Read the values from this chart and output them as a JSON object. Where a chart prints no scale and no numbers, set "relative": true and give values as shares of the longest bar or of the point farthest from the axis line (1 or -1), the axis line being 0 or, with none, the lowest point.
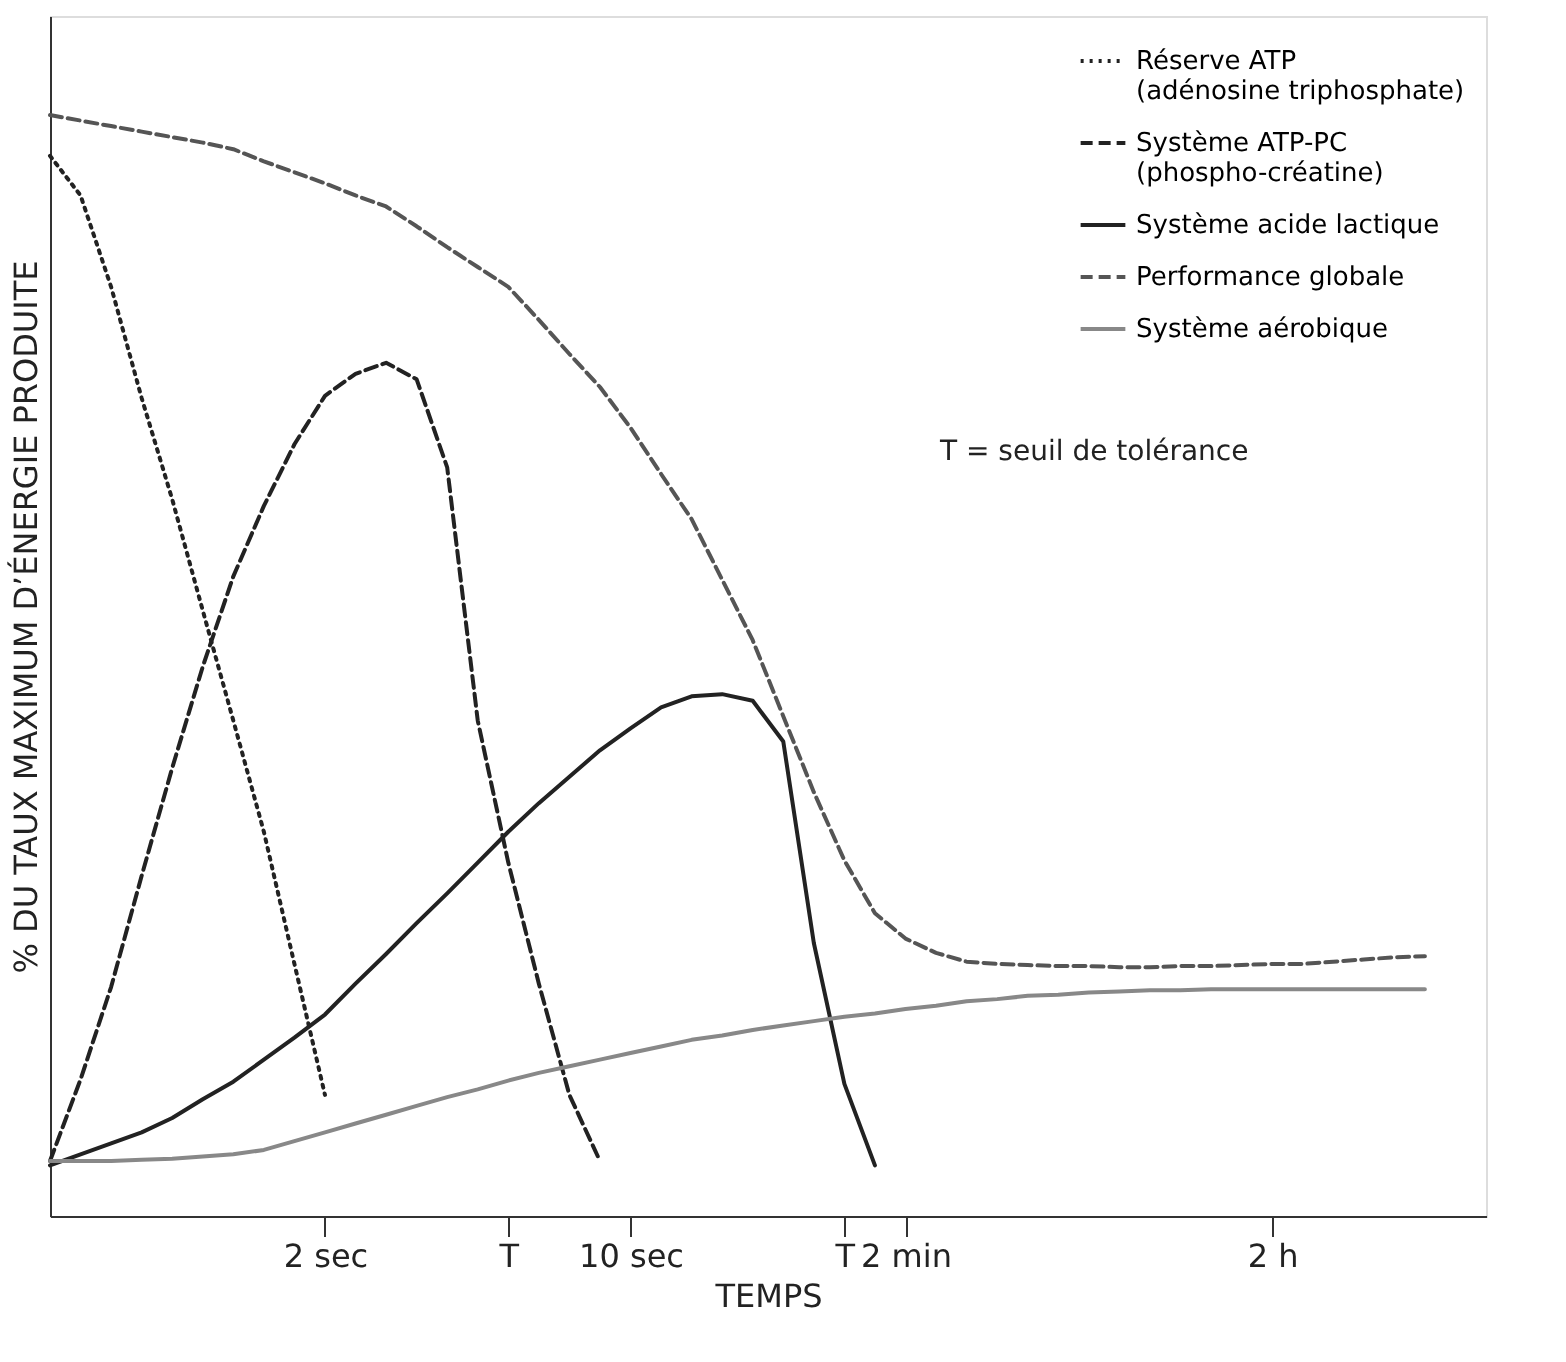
{
  "chart_data": {
    "type": "line",
    "relative": true,
    "xlabel": "TEMPS",
    "ylabel": "% DU TAUX MAXIMUM D’ÉNERGIE PRODUITE",
    "categories": [
      null,
      null,
      null,
      null,
      null,
      null,
      null,
      null,
      null,
      "2 sec",
      null,
      null,
      null,
      null,
      null,
      "T",
      null,
      null,
      null,
      "10 sec",
      null,
      null,
      null,
      null,
      null,
      null,
      "T",
      null,
      "2 min",
      null,
      null,
      null,
      null,
      null,
      null,
      null,
      null,
      null,
      null,
      null,
      "2 h",
      null,
      null,
      null,
      null,
      null,
      null,
      null
    ],
    "legend": "top right",
    "grid": false,
    "annotations": [
      "T   = seuil de tolérance"
    ],
    "series": [
      {
        "name": "Réserve ATP\n(adénosine triphosphate)",
        "color": "#222222",
        "line_style": "dotted",
        "values": [
          0.963,
          0.927,
          0.844,
          0.743,
          0.651,
          0.55,
          0.45,
          0.349,
          0.229,
          0.11,
          null,
          null,
          null,
          null,
          null,
          null,
          null,
          null,
          null,
          null,
          null,
          null,
          null,
          null,
          null,
          null,
          null,
          null,
          null,
          null,
          null,
          null,
          null,
          null,
          null,
          null,
          null,
          null,
          null,
          null,
          null,
          null,
          null,
          null,
          null,
          null,
          null,
          null
        ]
      },
      {
        "name": "Système ATP-PC\n(phospho-créatine)",
        "color": "#222222",
        "line_style": "dashed",
        "values": [
          0.05,
          0.124,
          0.208,
          0.309,
          0.407,
          0.499,
          0.581,
          0.645,
          0.701,
          0.745,
          0.765,
          0.775,
          0.76,
          0.68,
          0.45,
          0.321,
          0.211,
          0.11,
          0.05,
          null,
          null,
          null,
          null,
          null,
          null,
          null,
          null,
          null,
          null,
          null,
          null,
          null,
          null,
          null,
          null,
          null,
          null,
          null,
          null,
          null,
          null,
          null,
          null,
          null,
          null,
          null,
          null,
          null
        ]
      },
      {
        "name": "Système acide lactique",
        "color": "#222222",
        "line_style": "solid",
        "values": [
          0.046,
          0.056,
          0.066,
          0.076,
          0.089,
          0.106,
          0.122,
          0.142,
          0.162,
          0.183,
          0.211,
          0.238,
          0.266,
          0.293,
          0.321,
          0.349,
          0.375,
          0.399,
          0.423,
          0.443,
          0.462,
          0.472,
          0.474,
          0.468,
          0.431,
          0.248,
          0.12,
          0.046,
          null,
          null,
          null,
          null,
          null,
          null,
          null,
          null,
          null,
          null,
          null,
          null,
          null,
          null,
          null,
          null,
          null,
          null,
          null,
          null
        ]
      },
      {
        "name": "Performance globale",
        "color": "#555555",
        "line_style": "dashed",
        "values": [
          1.0,
          0.995,
          0.99,
          0.985,
          0.98,
          0.975,
          0.969,
          0.958,
          0.948,
          0.938,
          0.927,
          0.917,
          0.899,
          0.88,
          0.862,
          0.844,
          0.814,
          0.783,
          0.753,
          0.716,
          0.674,
          0.633,
          0.578,
          0.523,
          0.454,
          0.385,
          0.323,
          0.275,
          0.252,
          0.239,
          0.231,
          0.229,
          0.228,
          0.227,
          0.227,
          0.226,
          0.226,
          0.227,
          0.227,
          0.228,
          0.229,
          0.229,
          0.231,
          0.233,
          0.235,
          0.236,
          null,
          null
        ]
      },
      {
        "name": "Système aérobique",
        "color": "#888888",
        "line_style": "solid",
        "values": [
          0.05,
          0.05,
          0.05,
          0.051,
          0.052,
          0.054,
          0.056,
          0.06,
          0.068,
          0.076,
          0.084,
          0.092,
          0.1,
          0.108,
          0.115,
          0.123,
          0.13,
          0.136,
          0.142,
          0.148,
          0.154,
          0.16,
          0.164,
          0.169,
          0.173,
          0.177,
          0.181,
          0.184,
          0.188,
          0.191,
          0.195,
          0.197,
          0.2,
          0.201,
          0.203,
          0.204,
          0.205,
          0.205,
          0.206,
          0.206,
          0.206,
          0.206,
          0.206,
          0.206,
          0.206,
          0.206,
          null,
          null
        ]
      }
    ]
  }
}
